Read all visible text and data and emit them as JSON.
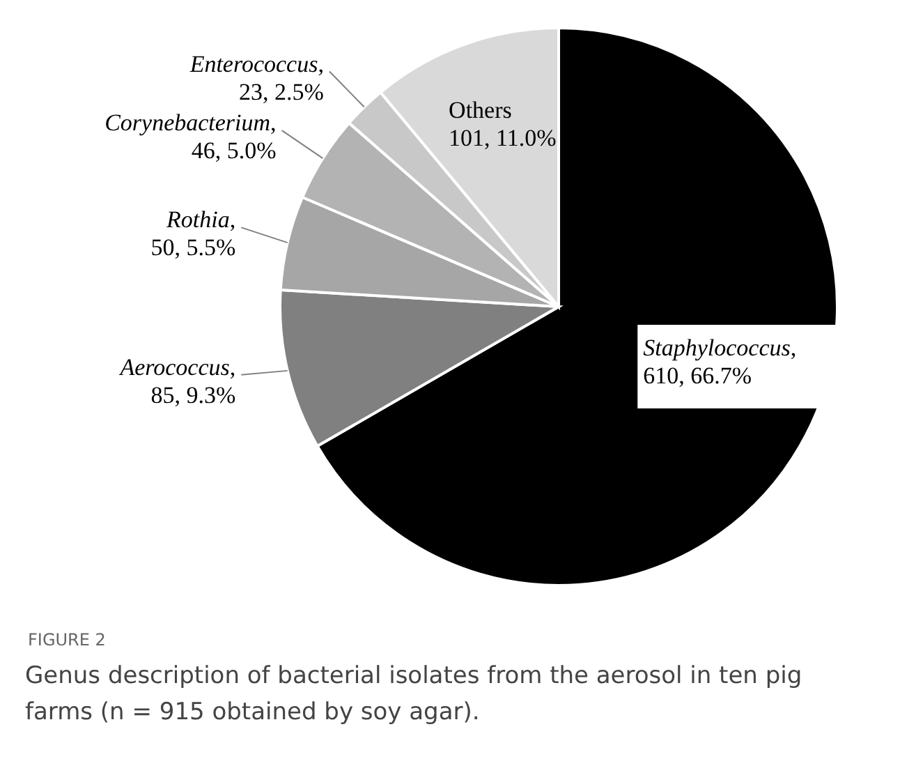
{
  "chart_data": {
    "type": "pie",
    "categories": [
      "Staphylococcus",
      "Aerococcus",
      "Rothia",
      "Corynebacterium",
      "Enterococcus",
      "Others"
    ],
    "values": [
      610,
      85,
      50,
      46,
      23,
      101
    ],
    "value_labels": [
      ",\n610, 66.7%",
      ",\n85, 9.3%",
      ",\n50, 5.5%",
      ",\n46, 5.0%",
      ",\n23, 2.5%",
      "\n101, 11.0%"
    ],
    "colors": [
      "#000000",
      "#808080",
      "#a6a6a6",
      "#b3b3b3",
      "#c8c8c8",
      "#d9d9d9"
    ],
    "annotations": [
      "FIGURE 2",
      "Genus description of bacterial isolates from the aerosol in ten pig farms (n = 915 obtained by soy agar)."
    ]
  }
}
